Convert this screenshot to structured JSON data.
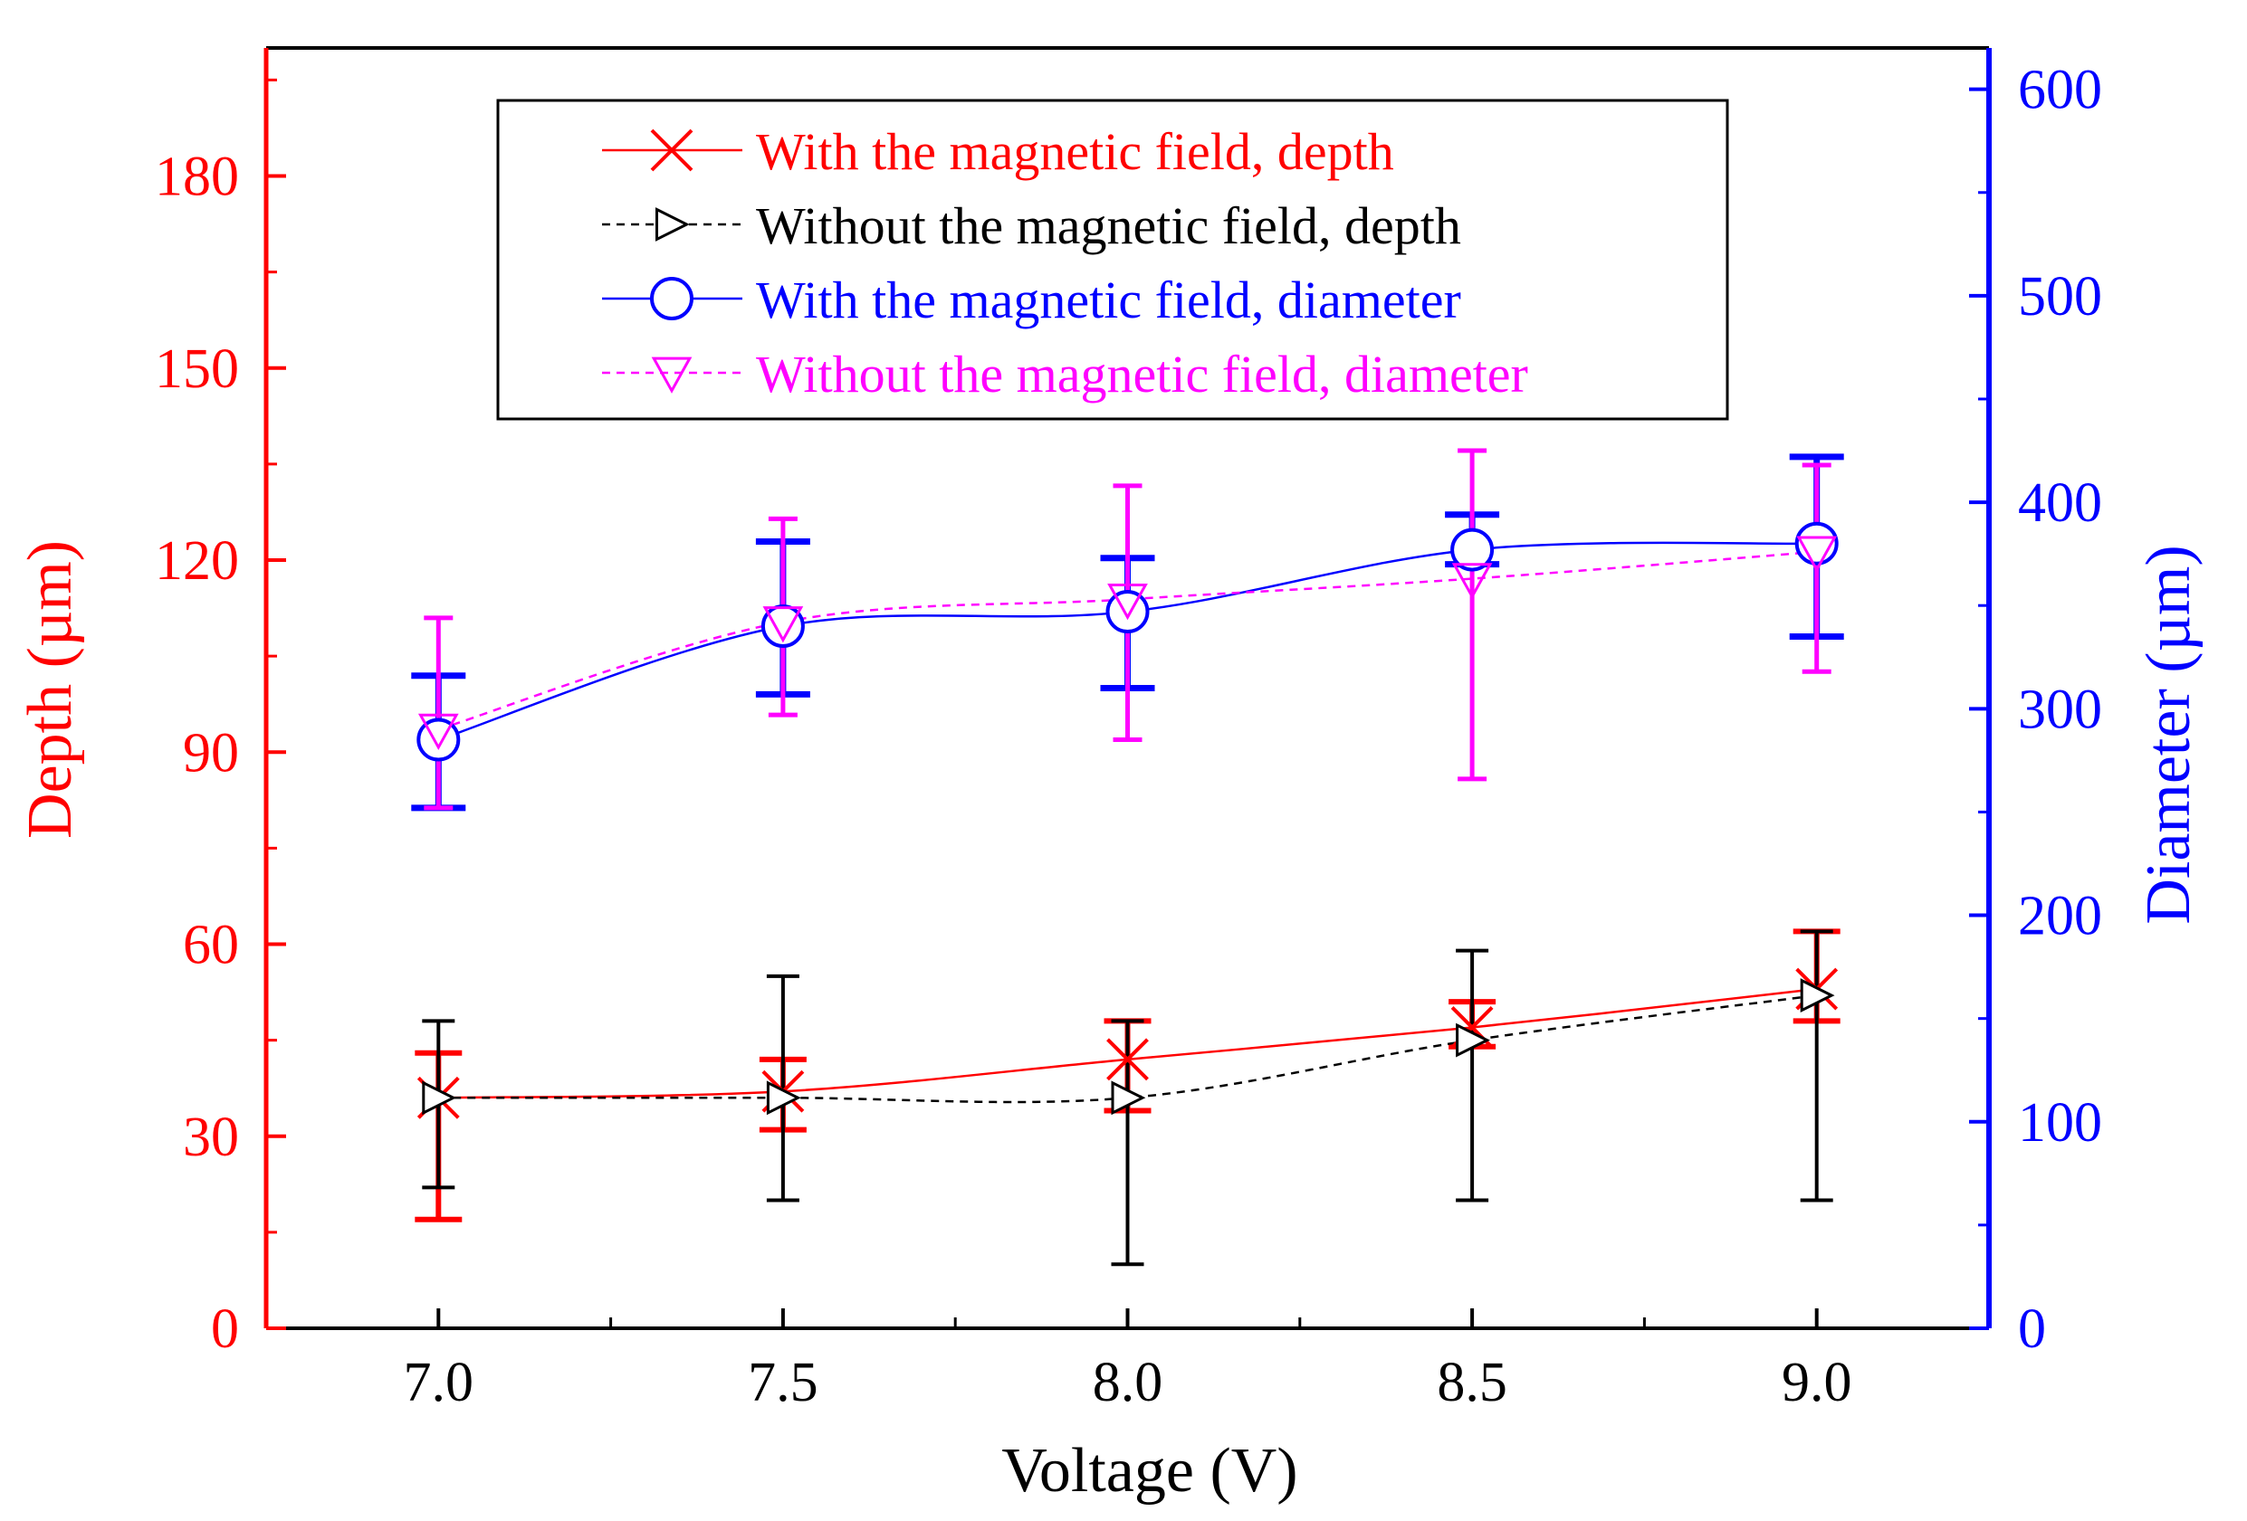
{
  "chart_data": {
    "type": "line",
    "xlabel": "Voltage (V)",
    "ylabel_left": "Depth (µm)",
    "ylabel_right": "Diameter (µm)",
    "xlim": [
      6.75,
      9.25
    ],
    "ylim_left": [
      0,
      200
    ],
    "ylim_right": [
      0,
      620
    ],
    "x_ticks": [
      7.0,
      7.5,
      8.0,
      8.5,
      9.0
    ],
    "x_tick_labels": [
      "7.0",
      "7.5",
      "8.0",
      "8.5",
      "9.0"
    ],
    "y_left_ticks": [
      0,
      30,
      60,
      90,
      120,
      150,
      180
    ],
    "y_left_tick_labels": [
      "0",
      "30",
      "60",
      "90",
      "120",
      "150",
      "180"
    ],
    "y_right_ticks": [
      0,
      100,
      200,
      300,
      400,
      500,
      600
    ],
    "y_right_tick_labels": [
      "0",
      "100",
      "200",
      "300",
      "400",
      "500",
      "600"
    ],
    "legend_position": "top-center",
    "colors": {
      "left_axis": "#ff0000",
      "right_axis": "#0000ff",
      "bottom_axis": "#000000"
    },
    "series": [
      {
        "name": "With the magnetic field, depth",
        "axis": "left",
        "color": "#ff0000",
        "marker": "x",
        "line": "solid",
        "x": [
          7.0,
          7.5,
          8.0,
          8.5,
          9.0
        ],
        "values": [
          36,
          37,
          42,
          47,
          53
        ],
        "err_low": [
          17,
          31,
          34,
          44,
          48
        ],
        "err_high": [
          43,
          42,
          48,
          51,
          62
        ]
      },
      {
        "name": "Without the magnetic field, depth",
        "axis": "left",
        "color": "#000000",
        "marker": "triangle-right",
        "line": "dashed",
        "x": [
          7.0,
          7.5,
          8.0,
          8.5,
          9.0
        ],
        "values": [
          36,
          36,
          36,
          45,
          52
        ],
        "err_low": [
          22,
          20,
          10,
          20,
          20
        ],
        "err_high": [
          48,
          55,
          48,
          59,
          62
        ]
      },
      {
        "name": "With the magnetic field, diameter",
        "axis": "right",
        "color": "#0000ff",
        "marker": "circle",
        "line": "solid",
        "x": [
          7.0,
          7.5,
          8.0,
          8.5,
          9.0
        ],
        "values": [
          285,
          340,
          347,
          377,
          380
        ],
        "err_low": [
          252,
          307,
          310,
          370,
          335
        ],
        "err_high": [
          316,
          381,
          373,
          394,
          422
        ]
      },
      {
        "name": "Without the magnetic field, diameter",
        "axis": "right",
        "color": "#ff00ff",
        "marker": "triangle-down",
        "line": "dashed",
        "x": [
          7.0,
          7.5,
          8.0,
          8.5,
          9.0
        ],
        "values": [
          290,
          342,
          353,
          363,
          376
        ],
        "err_low": [
          252,
          297,
          285,
          266,
          318
        ],
        "err_high": [
          344,
          392,
          408,
          425,
          418
        ]
      }
    ]
  }
}
